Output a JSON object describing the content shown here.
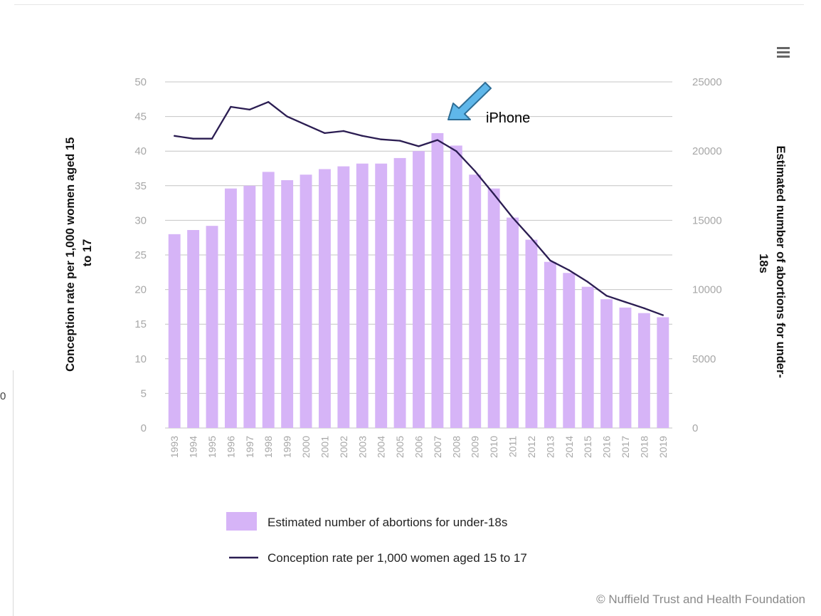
{
  "chart_data": {
    "type": "bar+line",
    "categories": [
      "1993",
      "1994",
      "1995",
      "1996",
      "1997",
      "1998",
      "1999",
      "2000",
      "2001",
      "2002",
      "2003",
      "2004",
      "2005",
      "2006",
      "2007",
      "2008",
      "2009",
      "2010",
      "2011",
      "2012",
      "2013",
      "2014",
      "2015",
      "2016",
      "2017",
      "2018",
      "2019"
    ],
    "series": [
      {
        "name": "Estimated number of abortions for under-18s",
        "type": "bar",
        "axis": "right",
        "color": "#d6b4f7",
        "values": [
          14000,
          14300,
          14600,
          17300,
          17500,
          18500,
          17900,
          18300,
          18700,
          18900,
          19100,
          19100,
          19500,
          20000,
          21300,
          20400,
          18300,
          17300,
          15200,
          13600,
          12000,
          11200,
          10200,
          9300,
          8700,
          8300,
          8000
        ]
      },
      {
        "name": "Conception rate per 1,000 women aged 15 to 17",
        "type": "line",
        "axis": "left",
        "color": "#2b1d52",
        "values": [
          42.2,
          41.8,
          41.8,
          46.4,
          46.0,
          47.1,
          45.0,
          43.8,
          42.6,
          42.9,
          42.2,
          41.7,
          41.5,
          40.7,
          41.6,
          40.0,
          37.1,
          33.8,
          30.4,
          27.4,
          24.2,
          22.8,
          21.1,
          19.1,
          18.2,
          17.3,
          16.3
        ]
      }
    ],
    "y_left": {
      "label": "Conception rate per 1,000 women aged 15 to 17",
      "range": [
        0,
        50
      ],
      "ticks": [
        "50",
        "45",
        "40",
        "35",
        "30",
        "25",
        "20",
        "15",
        "10",
        "5",
        "0"
      ]
    },
    "y_right": {
      "label": "Estimated number of abortions for under-18s",
      "range": [
        0,
        25000
      ],
      "ticks": [
        "25000",
        "20000",
        "15000",
        "10000",
        "5000",
        "0"
      ]
    },
    "grid": true,
    "legend_position": "bottom",
    "annotations": [
      {
        "text": "iPhone",
        "category": "2007",
        "color": "#5fb7ea"
      }
    ]
  },
  "credit": "© Nuffield Trust and Health Foundation",
  "menu_icon": "hamburger-menu-icon",
  "edge_mark": "0"
}
